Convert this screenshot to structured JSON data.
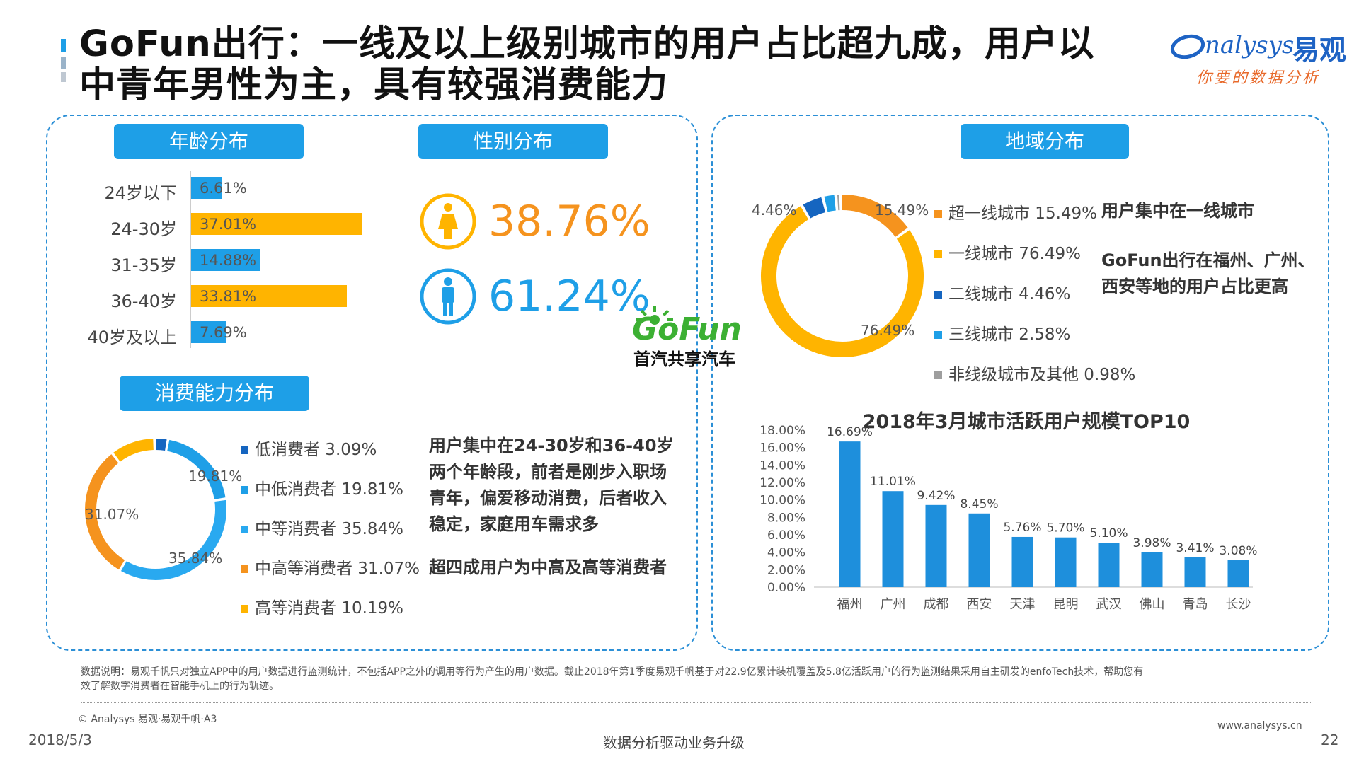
{
  "header": {
    "title_line1": "GoFun出行：一线及以上级别城市的用户占比超九成，用户以",
    "title_line2": "中青年男性为主，具有较强消费能力",
    "logo_text": "nalysys",
    "logo_cn": "易观",
    "logo_slogan": "你要的数据分析"
  },
  "sections": {
    "age_title": "年龄分布",
    "gender_title": "性别分布",
    "consumption_title": "消费能力分布",
    "region_title": "地域分布"
  },
  "gender": {
    "female_pct": "38.76%",
    "male_pct": "61.24%",
    "female_color": "#ffb400",
    "male_color": "#1e9fe7"
  },
  "gofun_logo": {
    "brand": "GoFun",
    "tagline": "首汽共享汽车"
  },
  "notes": {
    "age_note": [
      "用户集中在24-30岁和36-40岁",
      "两个年龄段，前者是刚步入职场",
      "青年，偏爱移动消费，后者收入",
      "稳定，家庭用车需求多"
    ],
    "consumption_note": "超四成用户为中高及高等消费者",
    "region_note1": "用户集中在一线城市",
    "region_note2": [
      "GoFun出行在福州、广州、",
      "西安等地的用户占比更高"
    ]
  },
  "chart_data": [
    {
      "type": "bar",
      "orientation": "horizontal",
      "categories": [
        "24岁以下",
        "24-30岁",
        "31-35岁",
        "36-40岁",
        "40岁及以上"
      ],
      "values": [
        6.61,
        37.01,
        14.88,
        33.81,
        7.69
      ],
      "value_labels": [
        "6.61%",
        "37.01%",
        "14.88%",
        "33.81%",
        "7.69%"
      ],
      "colors": [
        "#1e9fe7",
        "#ffb400",
        "#1e9fe7",
        "#ffb400",
        "#1e9fe7"
      ],
      "xlim": [
        0,
        40
      ]
    },
    {
      "type": "pie",
      "donut": true,
      "labels": [
        "低消费者",
        "中低消费者",
        "中等消费者",
        "中高等消费者",
        "高等消费者"
      ],
      "values": [
        3.09,
        19.81,
        35.84,
        31.07,
        10.19
      ],
      "legend_labels": [
        "低消费者 3.09%",
        "中低消费者 19.81%",
        "中等消费者 35.84%",
        "中高等消费者 31.07%",
        "高等消费者 10.19%"
      ],
      "ring_labels": [
        "",
        "19.81%",
        "35.84%",
        "31.07%",
        ""
      ],
      "colors": [
        "#1565c0",
        "#1e9fe7",
        "#29a9f0",
        "#f5931e",
        "#ffb400"
      ],
      "legend_position": "right"
    },
    {
      "type": "pie",
      "donut": true,
      "labels": [
        "超一线城市",
        "一线城市",
        "二线城市",
        "三线城市",
        "非线级城市及其他"
      ],
      "values": [
        15.49,
        76.49,
        4.46,
        2.58,
        0.98
      ],
      "legend_labels": [
        "超一线城市 15.49%",
        "一线城市 76.49%",
        "二线城市 4.46%",
        "三线城市 2.58%",
        "非线级城市及其他 0.98%"
      ],
      "ring_labels": [
        "15.49%",
        "76.49%",
        "4.46%",
        "",
        ""
      ],
      "colors": [
        "#f5931e",
        "#ffb400",
        "#1565c0",
        "#1e9fe7",
        "#9e9e9e"
      ],
      "legend_position": "right"
    },
    {
      "type": "bar",
      "title": "2018年3月城市活跃用户规模TOP10",
      "categories": [
        "福州",
        "广州",
        "成都",
        "西安",
        "天津",
        "昆明",
        "武汉",
        "佛山",
        "青岛",
        "长沙"
      ],
      "values": [
        16.69,
        11.01,
        9.42,
        8.45,
        5.76,
        5.7,
        5.1,
        3.98,
        3.41,
        3.08
      ],
      "value_labels": [
        "16.69%",
        "11.01%",
        "9.42%",
        "8.45%",
        "5.76%",
        "5.70%",
        "5.10%",
        "3.98%",
        "3.41%",
        "3.08%"
      ],
      "yticks": [
        "0.00%",
        "2.00%",
        "4.00%",
        "6.00%",
        "8.00%",
        "10.00%",
        "12.00%",
        "14.00%",
        "16.00%",
        "18.00%"
      ],
      "ylim": [
        0,
        18
      ],
      "color": "#1e8fdc"
    }
  ],
  "footer": {
    "note_line1": "数据说明：易观千帆只对独立APP中的用户数据进行监测统计，不包括APP之外的调用等行为产生的用户数据。截止2018年第1季度易观千帆基于对22.9亿累计装机覆盖及5.8亿活跃用户的行为监测结果采用自主研发的enfoTech技术，帮助您有",
    "note_line2": "效了解数字消费者在智能手机上的行为轨迹。",
    "copyright": "© Analysys 易观·易观千帆·A3",
    "website": "www.analysys.cn",
    "date": "2018/5/3",
    "slogan": "数据分析驱动业务升级",
    "page": "22"
  }
}
